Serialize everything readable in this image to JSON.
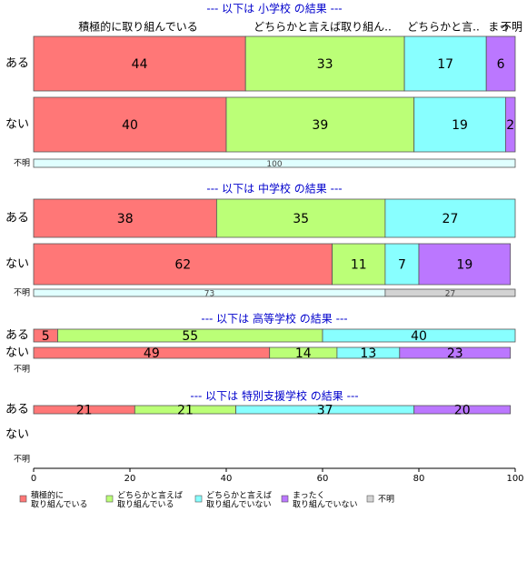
{
  "chart_data": {
    "type": "bar",
    "orientation": "horizontal",
    "stacked": true,
    "xlim": [
      0,
      100
    ],
    "xticks": [
      0,
      20,
      40,
      60,
      80,
      100
    ],
    "series": [
      {
        "name": [
          "積極的に",
          "取り組んでいる"
        ],
        "color": "#ff7777"
      },
      {
        "name": [
          "どちらかと言えば",
          "取り組んでいる"
        ],
        "color": "#bbff77"
      },
      {
        "name": [
          "どちらかと言えば",
          "取り組んでいない"
        ],
        "color": "#88ffff"
      },
      {
        "name": [
          "まったく",
          "取り組んでいない"
        ],
        "color": "#bb77ff"
      },
      {
        "name": [
          "不明"
        ],
        "color": "#d3d3d3"
      }
    ],
    "column_labels": [
      "積極的に取り組んでいる",
      "どちらかと言えば取り組ん..",
      "どちらかと言..",
      "まっ",
      "不明"
    ],
    "panels": [
      {
        "title": "--- 以下は 小学校 の結果 ---",
        "rows": [
          {
            "label": "ある",
            "values": [
              44,
              33,
              17,
              6,
              null
            ]
          },
          {
            "label": "ない",
            "values": [
              40,
              39,
              19,
              2,
              null
            ]
          },
          {
            "label": "不明",
            "values": [
              null,
              null,
              100,
              null,
              null
            ],
            "colors": [
              null,
              null,
              "#e0ffff",
              null,
              null
            ]
          }
        ]
      },
      {
        "title": "--- 以下は 中学校 の結果 ---",
        "rows": [
          {
            "label": "ある",
            "values": [
              38,
              35,
              27,
              null,
              null
            ]
          },
          {
            "label": "ない",
            "values": [
              62,
              11,
              7,
              19,
              null
            ]
          },
          {
            "label": "不明",
            "values": [
              null,
              null,
              73,
              null,
              27
            ],
            "colors": [
              null,
              null,
              "#e0ffff",
              null,
              "#d3d3d3"
            ]
          }
        ]
      },
      {
        "title": "--- 以下は 高等学校 の結果 ---",
        "rows": [
          {
            "label": "ある",
            "values": [
              5,
              55,
              40,
              null,
              null
            ]
          },
          {
            "label": "ない",
            "values": [
              49,
              14,
              13,
              23,
              null
            ]
          },
          {
            "label": "不明",
            "values": [
              null,
              null,
              null,
              null,
              null
            ]
          }
        ]
      },
      {
        "title": "--- 以下は 特別支援学校 の結果 ---",
        "rows": [
          {
            "label": "ある",
            "values": [
              21,
              21,
              37,
              20,
              null
            ]
          },
          {
            "label": "ない",
            "values": [
              null,
              null,
              null,
              null,
              null
            ]
          },
          {
            "label": "不明",
            "values": [
              null,
              null,
              null,
              null,
              null
            ]
          }
        ]
      }
    ]
  }
}
